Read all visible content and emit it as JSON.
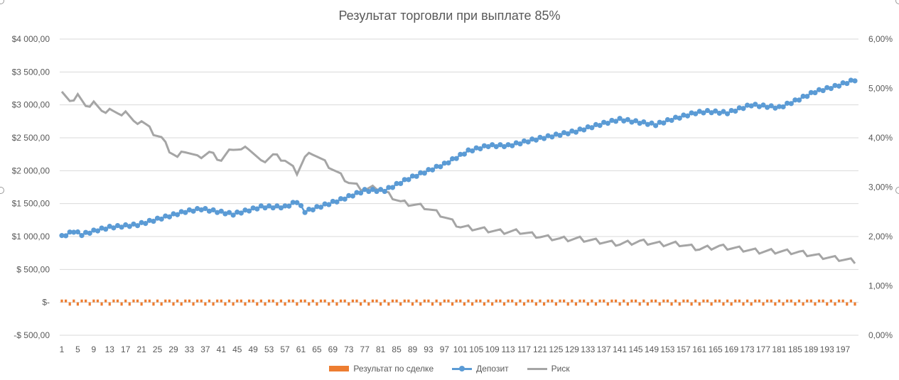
{
  "chart_data": {
    "type": "combo",
    "title": "Результат торговли при выплате 85%",
    "y_left": {
      "min": -500,
      "max": 4000,
      "step": 500,
      "tick_labels": [
        "-$ 500,00",
        "$-",
        "$ 500,00",
        "$1 000,00",
        "$1 500,00",
        "$2 000,00",
        "$2 500,00",
        "$3 000,00",
        "$3 500,00",
        "$4 000,00"
      ]
    },
    "y_right": {
      "min": 0,
      "max": 6,
      "step": 1,
      "tick_labels": [
        "0,00%",
        "1,00%",
        "2,00%",
        "3,00%",
        "4,00%",
        "5,00%",
        "6,00%"
      ]
    },
    "x": {
      "min": 1,
      "max": 200,
      "tick_labels": [
        "1",
        "5",
        "9",
        "13",
        "17",
        "21",
        "25",
        "29",
        "33",
        "37",
        "41",
        "45",
        "49",
        "53",
        "57",
        "61",
        "65",
        "69",
        "73",
        "77",
        "81",
        "85",
        "89",
        "93",
        "97",
        "101",
        "105",
        "109",
        "113",
        "117",
        "121",
        "125",
        "129",
        "133",
        "137",
        "141",
        "145",
        "149",
        "153",
        "157",
        "161",
        "165",
        "169",
        "173",
        "177",
        "181",
        "185",
        "189",
        "193",
        "197"
      ]
    },
    "gridlines": true,
    "legend_position": "bottom",
    "series": [
      {
        "name": "Результат по сделке",
        "type": "bar",
        "axis": "left",
        "color": "#ED7D31",
        "value_pattern": [
          42.5,
          42.5,
          -50,
          42.5,
          -50,
          42.5,
          42.5,
          -50,
          42.5,
          42.5,
          -50,
          42.5,
          -50
        ]
      },
      {
        "name": "Депозит",
        "type": "line-markers",
        "axis": "left",
        "color": "#5B9BD5",
        "anchors": [
          [
            1,
            1000
          ],
          [
            4,
            1080
          ],
          [
            6,
            1030
          ],
          [
            10,
            1100
          ],
          [
            13,
            1140
          ],
          [
            20,
            1180
          ],
          [
            32,
            1380
          ],
          [
            36,
            1420
          ],
          [
            44,
            1340
          ],
          [
            51,
            1450
          ],
          [
            57,
            1450
          ],
          [
            60,
            1530
          ],
          [
            62,
            1380
          ],
          [
            71,
            1560
          ],
          [
            77,
            1700
          ],
          [
            82,
            1700
          ],
          [
            88,
            1880
          ],
          [
            97,
            2100
          ],
          [
            103,
            2300
          ],
          [
            108,
            2380
          ],
          [
            113,
            2380
          ],
          [
            120,
            2480
          ],
          [
            130,
            2600
          ],
          [
            137,
            2720
          ],
          [
            141,
            2780
          ],
          [
            150,
            2700
          ],
          [
            154,
            2780
          ],
          [
            160,
            2880
          ],
          [
            163,
            2900
          ],
          [
            168,
            2880
          ],
          [
            174,
            3000
          ],
          [
            181,
            2960
          ],
          [
            185,
            3060
          ],
          [
            190,
            3200
          ],
          [
            195,
            3280
          ],
          [
            200,
            3380
          ]
        ]
      },
      {
        "name": "Риск",
        "type": "line",
        "axis": "right",
        "color": "#A5A5A5",
        "anchors": [
          [
            1,
            4.95
          ],
          [
            3,
            4.7
          ],
          [
            5,
            4.9
          ],
          [
            7,
            4.6
          ],
          [
            9,
            4.75
          ],
          [
            11,
            4.5
          ],
          [
            13,
            4.6
          ],
          [
            15,
            4.45
          ],
          [
            17,
            4.55
          ],
          [
            19,
            4.3
          ],
          [
            21,
            4.35
          ],
          [
            24,
            4.1
          ],
          [
            26,
            4.0
          ],
          [
            28,
            3.75
          ],
          [
            30,
            3.6
          ],
          [
            32,
            3.75
          ],
          [
            35,
            3.6
          ],
          [
            38,
            3.7
          ],
          [
            41,
            3.55
          ],
          [
            44,
            3.8
          ],
          [
            46,
            3.75
          ],
          [
            48,
            3.8
          ],
          [
            51,
            3.5
          ],
          [
            54,
            3.65
          ],
          [
            57,
            3.55
          ],
          [
            60,
            3.3
          ],
          [
            62,
            3.6
          ],
          [
            64,
            3.7
          ],
          [
            67,
            3.5
          ],
          [
            70,
            3.3
          ],
          [
            73,
            3.1
          ],
          [
            77,
            2.95
          ],
          [
            80,
            3.0
          ],
          [
            83,
            2.85
          ],
          [
            86,
            2.7
          ],
          [
            89,
            2.65
          ],
          [
            92,
            2.6
          ],
          [
            96,
            2.45
          ],
          [
            101,
            2.2
          ],
          [
            106,
            2.15
          ],
          [
            111,
            2.1
          ],
          [
            116,
            2.1
          ],
          [
            121,
            2.0
          ],
          [
            126,
            1.95
          ],
          [
            131,
            1.95
          ],
          [
            136,
            1.9
          ],
          [
            141,
            1.85
          ],
          [
            146,
            1.9
          ],
          [
            151,
            1.85
          ],
          [
            156,
            1.85
          ],
          [
            161,
            1.75
          ],
          [
            166,
            1.8
          ],
          [
            171,
            1.75
          ],
          [
            176,
            1.7
          ],
          [
            181,
            1.7
          ],
          [
            186,
            1.68
          ],
          [
            191,
            1.6
          ],
          [
            196,
            1.55
          ],
          [
            200,
            1.5
          ]
        ]
      }
    ]
  }
}
